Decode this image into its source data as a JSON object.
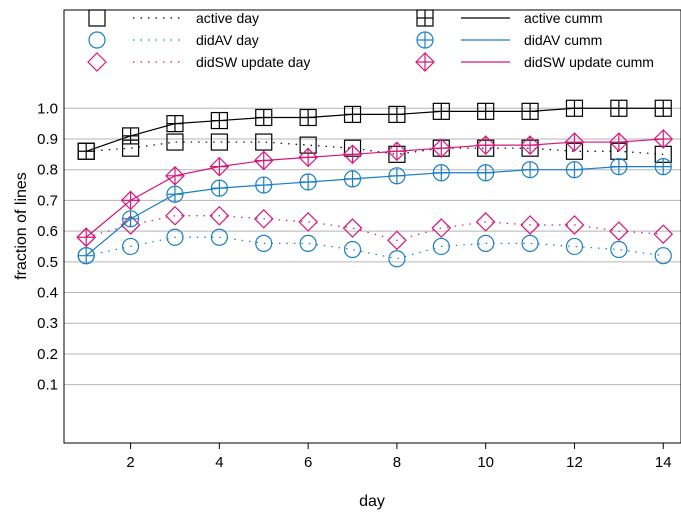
{
  "chart_data": {
    "type": "line",
    "title": "",
    "xlabel": "day",
    "ylabel": "fraction of lines",
    "xlim": [
      0.5,
      14.4
    ],
    "ylim": [
      -0.09,
      1.32
    ],
    "xticks": [
      2,
      4,
      6,
      8,
      10,
      12,
      14
    ],
    "yticks": [
      0.1,
      0.2,
      0.3,
      0.4,
      0.5,
      0.6,
      0.7,
      0.8,
      0.9,
      1.0
    ],
    "ytick_labels": [
      "0.1",
      "0.2",
      "0.3",
      "0.4",
      "0.5",
      "0.6",
      "0.7",
      "0.8",
      "0.9",
      "1.0"
    ],
    "grid": "horizontal",
    "legend_position": "top",
    "x": [
      1,
      2,
      3,
      4,
      5,
      6,
      7,
      8,
      9,
      10,
      11,
      12,
      13,
      14
    ],
    "series": [
      {
        "name": "active day",
        "marker": "square",
        "line": "dotted",
        "color": "#000000",
        "values": [
          0.86,
          0.87,
          0.89,
          0.89,
          0.89,
          0.88,
          0.87,
          0.85,
          0.87,
          0.87,
          0.87,
          0.86,
          0.86,
          0.85
        ]
      },
      {
        "name": "didAV day",
        "marker": "circle",
        "line": "dotted",
        "color": "#1a7fc4",
        "values": [
          0.52,
          0.55,
          0.58,
          0.58,
          0.56,
          0.56,
          0.54,
          0.51,
          0.55,
          0.56,
          0.56,
          0.55,
          0.54,
          0.52
        ]
      },
      {
        "name": "didSW update day",
        "marker": "diamond",
        "line": "dotted",
        "color": "#d4187c",
        "values": [
          0.58,
          0.62,
          0.65,
          0.65,
          0.64,
          0.63,
          0.61,
          0.57,
          0.61,
          0.63,
          0.62,
          0.62,
          0.6,
          0.59
        ]
      },
      {
        "name": "active cumm",
        "marker": "square-plus",
        "line": "solid",
        "color": "#000000",
        "values": [
          0.86,
          0.91,
          0.95,
          0.96,
          0.97,
          0.97,
          0.98,
          0.98,
          0.99,
          0.99,
          0.99,
          1.0,
          1.0,
          1.0
        ]
      },
      {
        "name": "didAV cumm",
        "marker": "circle-plus",
        "line": "solid",
        "color": "#1a7fc4",
        "values": [
          0.52,
          0.64,
          0.72,
          0.74,
          0.75,
          0.76,
          0.77,
          0.78,
          0.79,
          0.79,
          0.8,
          0.8,
          0.81,
          0.81
        ]
      },
      {
        "name": "didSW update cumm",
        "marker": "diamond-plus",
        "line": "solid",
        "color": "#d4187c",
        "values": [
          0.58,
          0.7,
          0.78,
          0.81,
          0.83,
          0.84,
          0.85,
          0.86,
          0.87,
          0.88,
          0.88,
          0.89,
          0.89,
          0.9
        ]
      }
    ]
  }
}
